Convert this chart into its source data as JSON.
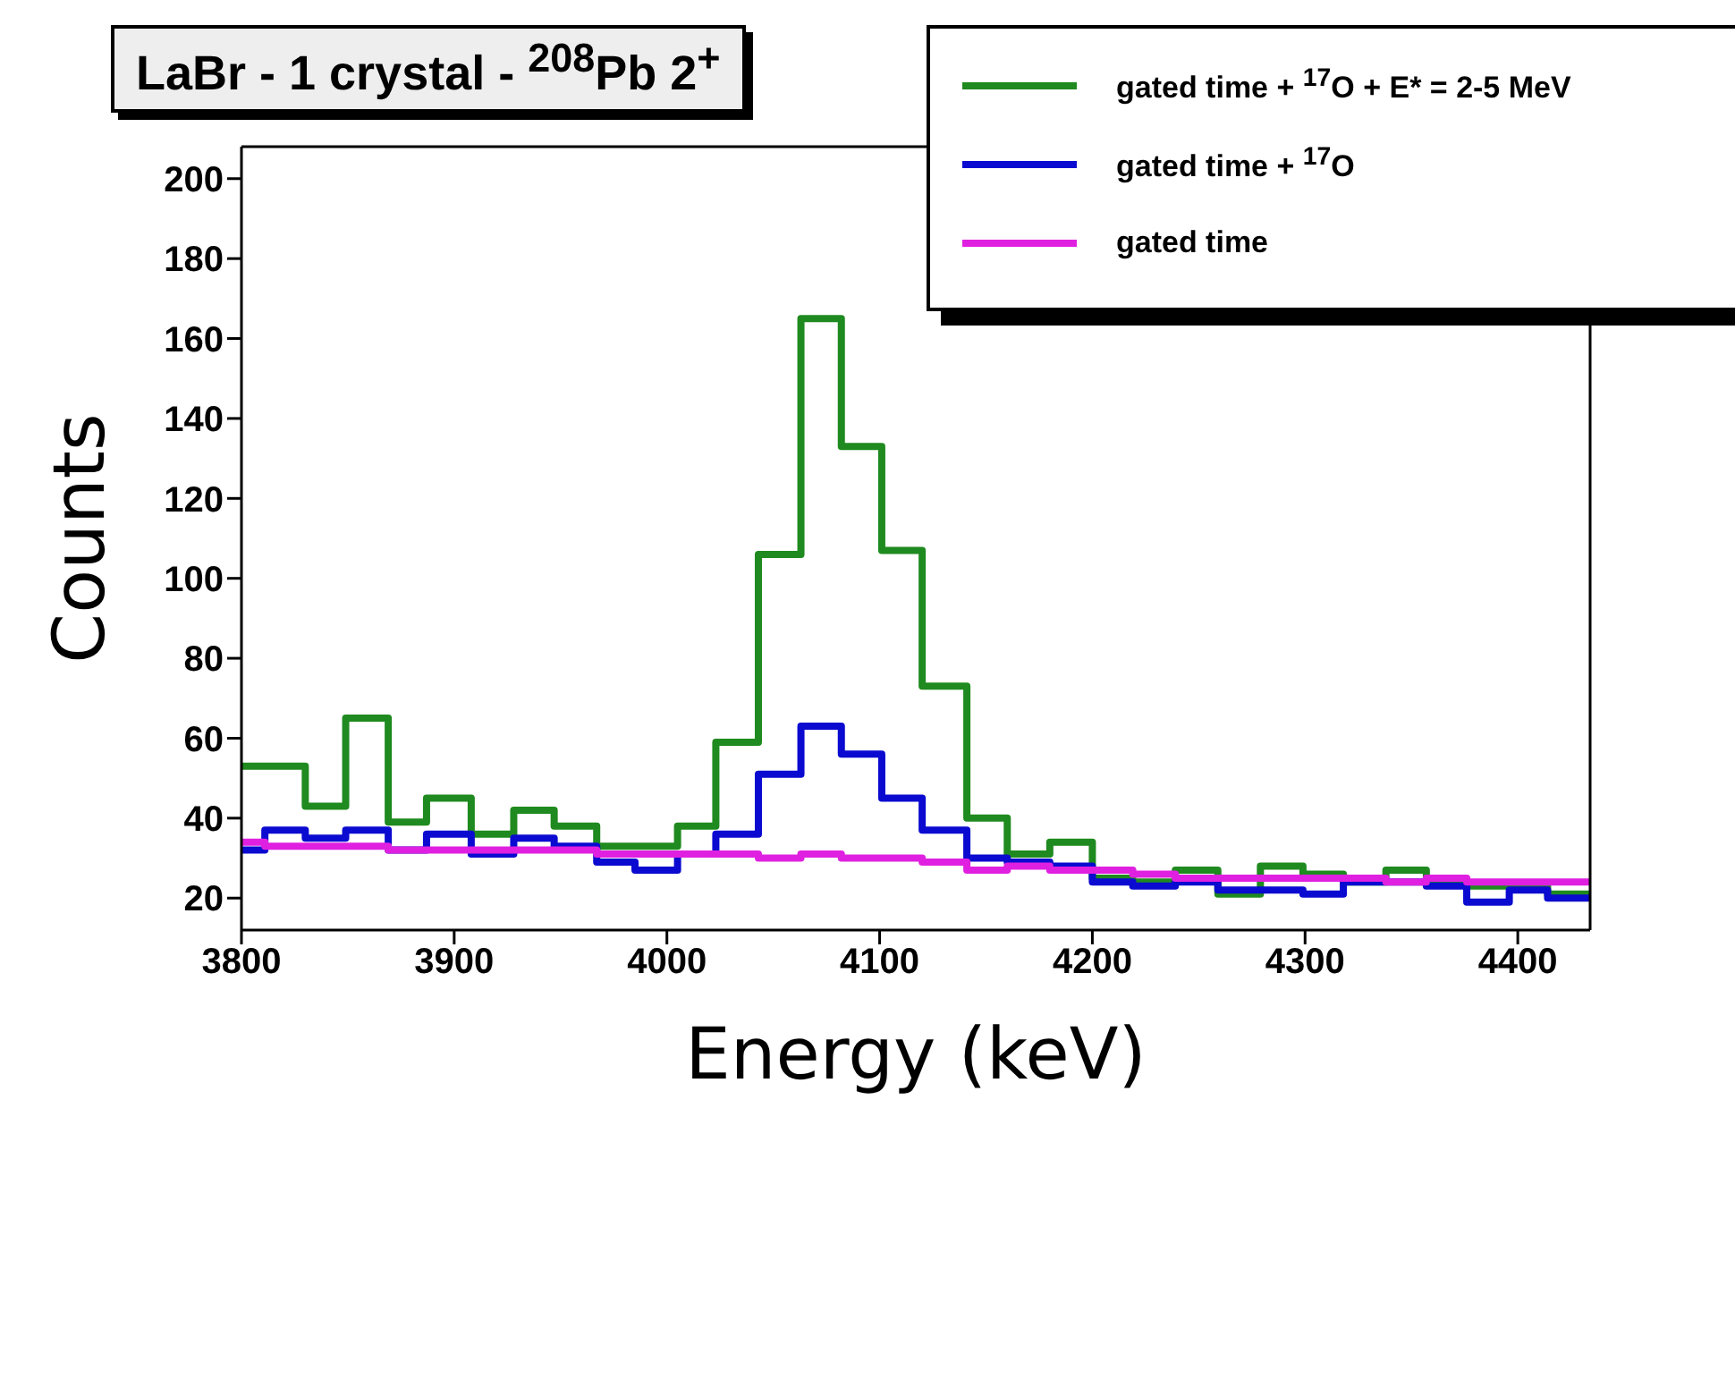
{
  "chart_data": {
    "type": "histogram",
    "title": "LaBr - 1 crystal - $^{208}$Pb 2$^{+}$",
    "xlabel": "Energy (keV)",
    "ylabel": "Counts",
    "bins": [
      3800,
      3811,
      3830,
      3849,
      3869,
      3887,
      3908,
      3928,
      3947,
      3967,
      3985,
      4005,
      4023,
      4043,
      4063,
      4082,
      4101,
      4120,
      4141,
      4160,
      4180,
      4200,
      4219,
      4239,
      4259,
      4279,
      4299,
      4318,
      4338,
      4357,
      4376,
      4396,
      4414,
      4434
    ],
    "series": [
      {
        "name": "gated time + $^{17}$O + E* = 2-5 MeV",
        "color": "#1f8a1f",
        "values": [
          53,
          53,
          43,
          65,
          39,
          45,
          36,
          42,
          38,
          33,
          33,
          38,
          59,
          106,
          165,
          133,
          107,
          73,
          40,
          31,
          34,
          25,
          24,
          27,
          21,
          28,
          26,
          24,
          27,
          24,
          23,
          23,
          21
        ]
      },
      {
        "name": "gated time + $^{17}$O",
        "color": "#0a0ad0",
        "values": [
          32,
          37,
          35,
          37,
          32,
          36,
          31,
          35,
          33,
          29,
          27,
          31,
          36,
          51,
          63,
          56,
          45,
          37,
          30,
          29,
          28,
          24,
          23,
          24,
          22,
          22,
          21,
          24,
          24,
          23,
          19,
          22,
          20
        ]
      },
      {
        "name": "gated time",
        "color": "#e020e0",
        "values": [
          34,
          33,
          33,
          33,
          32,
          32,
          32,
          32,
          32,
          31,
          31,
          31,
          31,
          30,
          31,
          30,
          30,
          29,
          27,
          28,
          27,
          27,
          26,
          25,
          25,
          25,
          25,
          25,
          24,
          25,
          24,
          24,
          24
        ]
      }
    ],
    "xlim": [
      3800,
      4434
    ],
    "xticks": [
      3800,
      3900,
      4000,
      4100,
      4200,
      4300,
      4400
    ],
    "ylim": [
      12,
      208
    ],
    "yticks": [
      20,
      40,
      60,
      80,
      100,
      120,
      140,
      160,
      180,
      200
    ],
    "legend": "top right"
  }
}
